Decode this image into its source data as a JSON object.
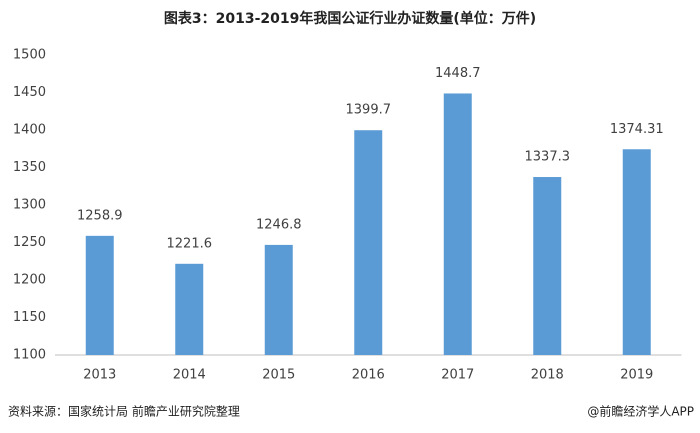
{
  "chart_data": {
    "type": "bar",
    "title": "图表3：2013-2019年我国公证行业办证数量(单位：万件)",
    "categories": [
      "2013",
      "2014",
      "2015",
      "2016",
      "2017",
      "2018",
      "2019"
    ],
    "values": [
      1258.9,
      1221.6,
      1246.8,
      1399.7,
      1448.7,
      1337.3,
      1374.31
    ],
    "color": "#5b9bd5",
    "ylim": [
      1100,
      1500
    ],
    "yticks": [
      1100,
      1150,
      1200,
      1250,
      1300,
      1350,
      1400,
      1450,
      1500
    ],
    "grid": false,
    "source": "资料来源：国家统计局 前瞻产业研究院整理",
    "credit": "@前瞻经济学人APP"
  }
}
